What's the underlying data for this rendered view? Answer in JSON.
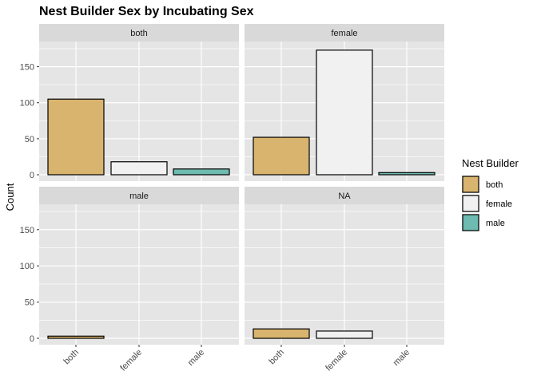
{
  "chart_data": {
    "type": "bar",
    "title": "Nest Builder Sex by Incubating Sex",
    "xlabel": "",
    "ylabel": "Count",
    "ylim": [
      0,
      185
    ],
    "yticks": [
      0,
      50,
      100,
      150
    ],
    "categories": [
      "both",
      "female",
      "male"
    ],
    "legend": {
      "title": "Nest Builder",
      "position": "right",
      "entries": [
        "both",
        "female",
        "male"
      ]
    },
    "colors": {
      "both": "#d8b46e",
      "female": "#f1f1f1",
      "male": "#6dbbb1",
      "panel_bg": "#e5e5e5",
      "strip_bg": "#d9d9d9",
      "grid": "#ffffff"
    },
    "grid": true,
    "facets": [
      {
        "label": "both",
        "values": [
          105,
          18,
          8
        ]
      },
      {
        "label": "female",
        "values": [
          52,
          173,
          3
        ]
      },
      {
        "label": "male",
        "values": [
          3,
          0,
          0
        ]
      },
      {
        "label": "NA",
        "values": [
          13,
          10,
          0
        ]
      }
    ]
  }
}
